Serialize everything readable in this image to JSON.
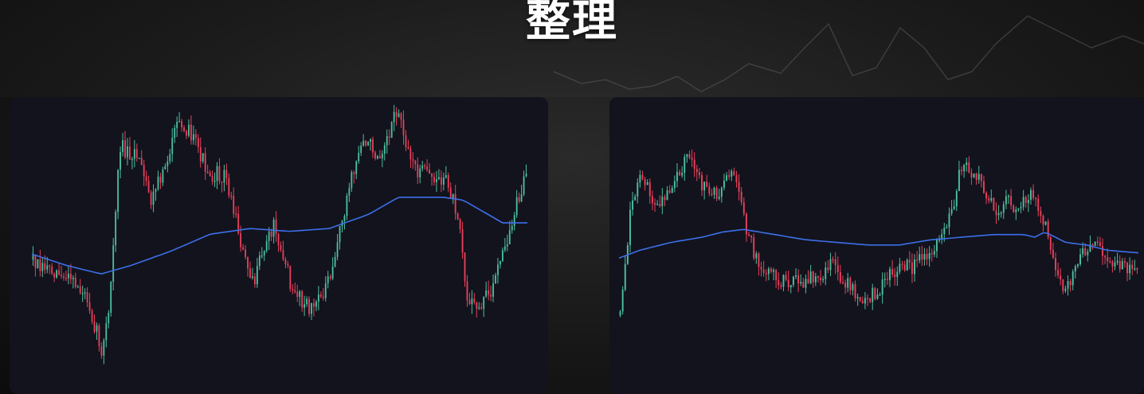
{
  "title": "整理",
  "colors": {
    "up": "#4dbf9f",
    "down": "#e8405a",
    "moving_average": "#3d6fe8",
    "panel_background": "#12131d",
    "page_background": "#141414",
    "title_text": "#ffffff"
  },
  "chart_data": [
    {
      "type": "candlestick",
      "title": "",
      "series": [
        {
          "name": "",
          "kind": "candles",
          "count": 210
        },
        {
          "name": "",
          "kind": "moving_average"
        }
      ],
      "trend": [
        [
          0,
          0.55
        ],
        [
          0.04,
          0.58
        ],
        [
          0.08,
          0.63
        ],
        [
          0.11,
          0.68
        ],
        [
          0.14,
          0.88
        ],
        [
          0.155,
          0.72
        ],
        [
          0.175,
          0.15
        ],
        [
          0.21,
          0.18
        ],
        [
          0.24,
          0.35
        ],
        [
          0.27,
          0.2
        ],
        [
          0.3,
          0.05
        ],
        [
          0.33,
          0.15
        ],
        [
          0.36,
          0.25
        ],
        [
          0.39,
          0.25
        ],
        [
          0.41,
          0.4
        ],
        [
          0.43,
          0.55
        ],
        [
          0.45,
          0.62
        ],
        [
          0.47,
          0.5
        ],
        [
          0.49,
          0.42
        ],
        [
          0.52,
          0.62
        ],
        [
          0.55,
          0.72
        ],
        [
          0.58,
          0.7
        ],
        [
          0.61,
          0.55
        ],
        [
          0.64,
          0.3
        ],
        [
          0.67,
          0.12
        ],
        [
          0.7,
          0.18
        ],
        [
          0.74,
          0.02
        ],
        [
          0.77,
          0.22
        ],
        [
          0.8,
          0.25
        ],
        [
          0.84,
          0.28
        ],
        [
          0.865,
          0.4
        ],
        [
          0.88,
          0.7
        ],
        [
          0.9,
          0.72
        ],
        [
          0.93,
          0.65
        ],
        [
          0.96,
          0.5
        ],
        [
          0.985,
          0.32
        ],
        [
          1.0,
          0.25
        ]
      ],
      "moving_average": [
        [
          0,
          0.53
        ],
        [
          0.07,
          0.57
        ],
        [
          0.14,
          0.6
        ],
        [
          0.2,
          0.57
        ],
        [
          0.28,
          0.52
        ],
        [
          0.36,
          0.46
        ],
        [
          0.44,
          0.44
        ],
        [
          0.52,
          0.45
        ],
        [
          0.6,
          0.44
        ],
        [
          0.68,
          0.39
        ],
        [
          0.74,
          0.33
        ],
        [
          0.78,
          0.33
        ],
        [
          0.83,
          0.33
        ],
        [
          0.87,
          0.34
        ],
        [
          0.91,
          0.38
        ],
        [
          0.95,
          0.42
        ],
        [
          1.0,
          0.42
        ]
      ]
    },
    {
      "type": "candlestick",
      "title": "",
      "series": [
        {
          "name": "",
          "kind": "candles",
          "count": 210
        },
        {
          "name": "",
          "kind": "moving_average"
        }
      ],
      "trend": [
        [
          0,
          0.8
        ],
        [
          0.02,
          0.4
        ],
        [
          0.04,
          0.25
        ],
        [
          0.07,
          0.4
        ],
        [
          0.1,
          0.3
        ],
        [
          0.13,
          0.2
        ],
        [
          0.16,
          0.3
        ],
        [
          0.19,
          0.35
        ],
        [
          0.21,
          0.25
        ],
        [
          0.23,
          0.3
        ],
        [
          0.245,
          0.48
        ],
        [
          0.27,
          0.62
        ],
        [
          0.3,
          0.66
        ],
        [
          0.33,
          0.68
        ],
        [
          0.36,
          0.66
        ],
        [
          0.39,
          0.64
        ],
        [
          0.41,
          0.6
        ],
        [
          0.43,
          0.67
        ],
        [
          0.45,
          0.7
        ],
        [
          0.48,
          0.74
        ],
        [
          0.51,
          0.68
        ],
        [
          0.54,
          0.6
        ],
        [
          0.56,
          0.62
        ],
        [
          0.59,
          0.58
        ],
        [
          0.61,
          0.55
        ],
        [
          0.63,
          0.45
        ],
        [
          0.645,
          0.38
        ],
        [
          0.66,
          0.22
        ],
        [
          0.69,
          0.27
        ],
        [
          0.71,
          0.35
        ],
        [
          0.73,
          0.4
        ],
        [
          0.75,
          0.36
        ],
        [
          0.77,
          0.4
        ],
        [
          0.79,
          0.34
        ],
        [
          0.81,
          0.38
        ],
        [
          0.825,
          0.48
        ],
        [
          0.84,
          0.62
        ],
        [
          0.86,
          0.7
        ],
        [
          0.88,
          0.62
        ],
        [
          0.9,
          0.55
        ],
        [
          0.92,
          0.52
        ],
        [
          0.94,
          0.56
        ],
        [
          0.96,
          0.6
        ],
        [
          0.98,
          0.62
        ],
        [
          1.0,
          0.62
        ]
      ],
      "moving_average": [
        [
          0,
          0.58
        ],
        [
          0.04,
          0.55
        ],
        [
          0.1,
          0.52
        ],
        [
          0.16,
          0.5
        ],
        [
          0.2,
          0.48
        ],
        [
          0.24,
          0.47
        ],
        [
          0.3,
          0.49
        ],
        [
          0.36,
          0.51
        ],
        [
          0.42,
          0.52
        ],
        [
          0.48,
          0.53
        ],
        [
          0.54,
          0.53
        ],
        [
          0.6,
          0.51
        ],
        [
          0.66,
          0.5
        ],
        [
          0.72,
          0.49
        ],
        [
          0.78,
          0.49
        ],
        [
          0.8,
          0.5
        ],
        [
          0.82,
          0.48
        ],
        [
          0.86,
          0.52
        ],
        [
          0.9,
          0.53
        ],
        [
          0.94,
          0.55
        ],
        [
          1.0,
          0.56
        ]
      ]
    }
  ]
}
